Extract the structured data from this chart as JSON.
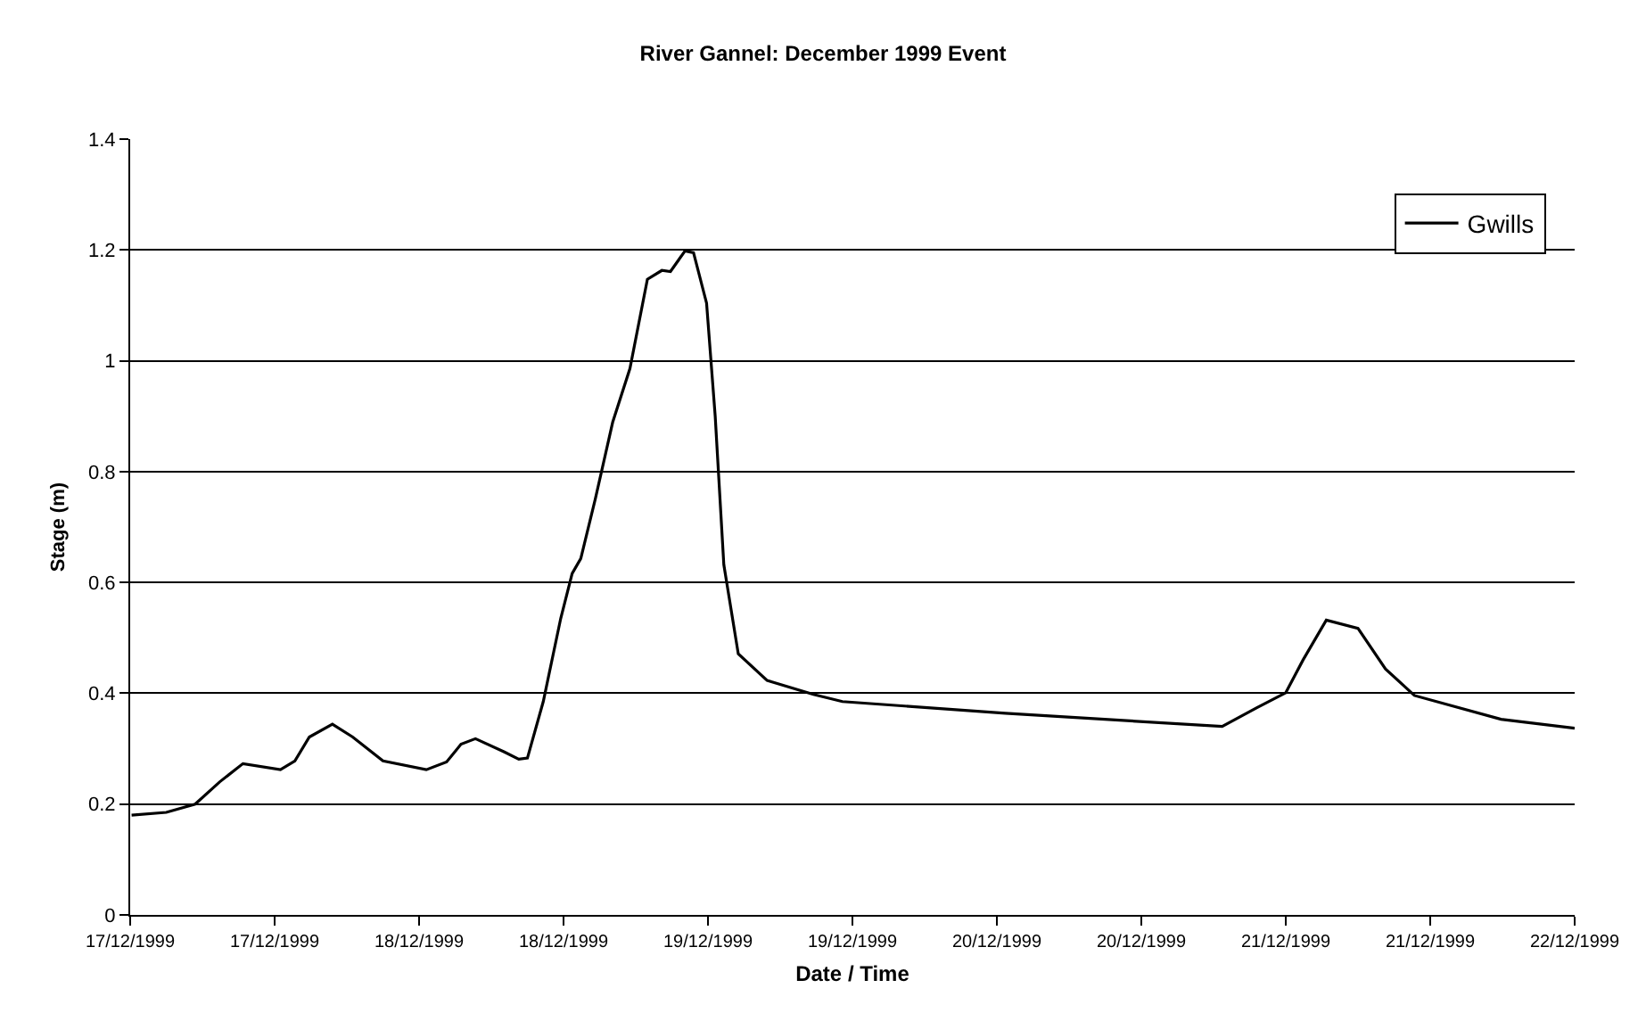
{
  "chart_data": {
    "type": "line",
    "title": "River Gannel: December 1999 Event",
    "xlabel": "Date / Time",
    "ylabel": "Stage (m)",
    "x": [
      "1999-12-17T00:07",
      "1999-12-17T03:00",
      "1999-12-17T05:24",
      "1999-12-17T07:26",
      "1999-12-17T09:22",
      "1999-12-17T12:29",
      "1999-12-17T13:41",
      "1999-12-17T14:53",
      "1999-12-17T16:48",
      "1999-12-17T18:29",
      "1999-12-17T21:00",
      "1999-12-18T00:36",
      "1999-12-18T02:17",
      "1999-12-18T03:29",
      "1999-12-18T04:41",
      "1999-12-18T07:05",
      "1999-12-18T08:17",
      "1999-12-18T09:00",
      "1999-12-18T10:19",
      "1999-12-18T11:46",
      "1999-12-18T12:43",
      "1999-12-18T13:26",
      "1999-12-18T14:38",
      "1999-12-18T16:05",
      "1999-12-18T17:31",
      "1999-12-18T18:58",
      "1999-12-18T20:10",
      "1999-12-18T20:53",
      "1999-12-18T22:05",
      "1999-12-18T22:48",
      "1999-12-18T23:53",
      "1999-12-19T00:36",
      "1999-12-19T01:19",
      "1999-12-19T02:31",
      "1999-12-19T04:55",
      "1999-12-19T08:46",
      "1999-12-19T11:10",
      "1999-12-20T00:43",
      "1999-12-20T18:43",
      "1999-12-20T21:36",
      "1999-12-21T00:00",
      "1999-12-21T01:26",
      "1999-12-21T03:22",
      "1999-12-21T06:00",
      "1999-12-21T08:17",
      "1999-12-21T10:41",
      "1999-12-21T17:53",
      "1999-12-22T00:00"
    ],
    "series": [
      {
        "name": "Gwills",
        "color": "#000000",
        "values": [
          0.18,
          0.185,
          0.2,
          0.24,
          0.273,
          0.262,
          0.278,
          0.321,
          0.344,
          0.321,
          0.278,
          0.262,
          0.276,
          0.308,
          0.318,
          0.294,
          0.281,
          0.283,
          0.385,
          0.535,
          0.616,
          0.643,
          0.75,
          0.889,
          0.986,
          1.147,
          1.163,
          1.161,
          1.198,
          1.195,
          1.104,
          0.9,
          0.632,
          0.471,
          0.423,
          0.398,
          0.385,
          0.364,
          0.34,
          0.374,
          0.401,
          0.46,
          0.532,
          0.517,
          0.444,
          0.396,
          0.353,
          0.337
        ]
      }
    ],
    "xlim": [
      "1999-12-17",
      "1999-12-22"
    ],
    "xticks": [
      {
        "value": "1999-12-17T00:00",
        "label": "17/12/1999"
      },
      {
        "value": "1999-12-17T12:00",
        "label": "17/12/1999"
      },
      {
        "value": "1999-12-18T00:00",
        "label": "18/12/1999"
      },
      {
        "value": "1999-12-18T12:00",
        "label": "18/12/1999"
      },
      {
        "value": "1999-12-19T00:00",
        "label": "19/12/1999"
      },
      {
        "value": "1999-12-19T12:00",
        "label": "19/12/1999"
      },
      {
        "value": "1999-12-20T00:00",
        "label": "20/12/1999"
      },
      {
        "value": "1999-12-20T12:00",
        "label": "20/12/1999"
      },
      {
        "value": "1999-12-21T00:00",
        "label": "21/12/1999"
      },
      {
        "value": "1999-12-21T12:00",
        "label": "21/12/1999"
      },
      {
        "value": "1999-12-22T00:00",
        "label": "22/12/1999"
      }
    ],
    "ylim": [
      0,
      1.4
    ],
    "yticks": [
      0,
      0.2,
      0.4,
      0.6,
      0.8,
      1,
      1.2,
      1.4
    ],
    "grid": "y",
    "legend": "top right",
    "marker": "none",
    "line_style": "solid"
  }
}
